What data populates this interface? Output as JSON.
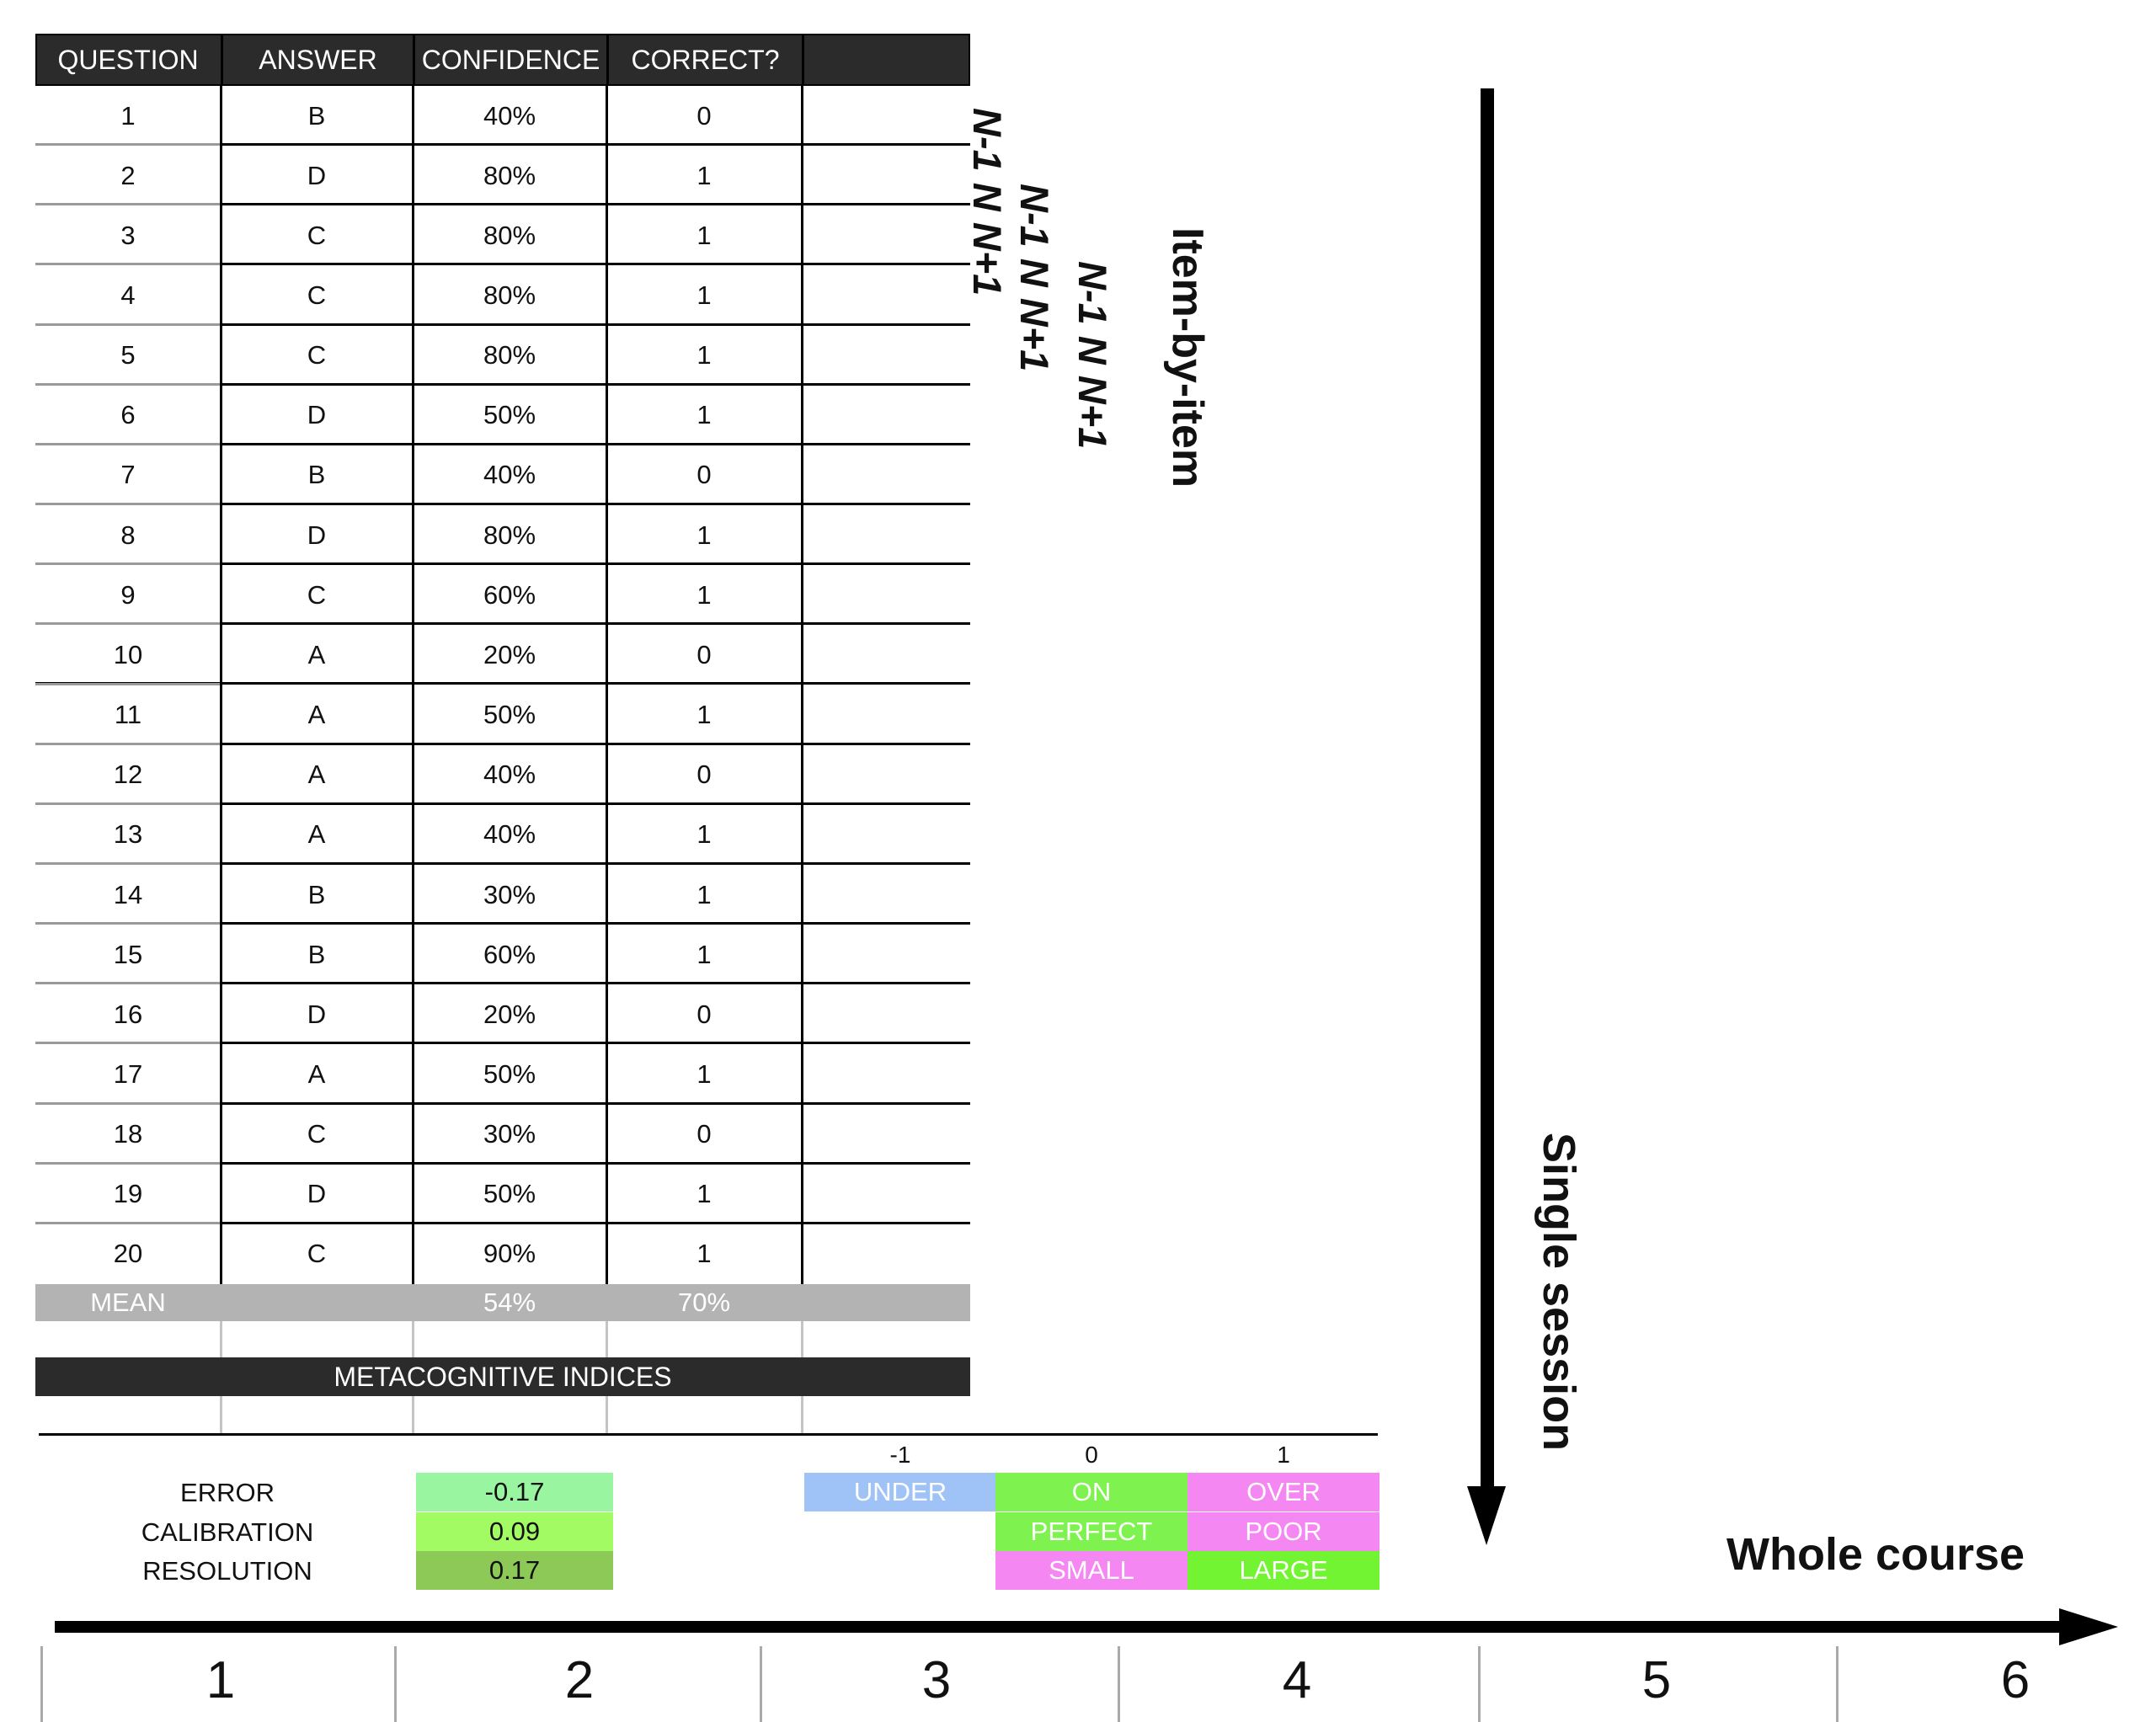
{
  "table": {
    "headers": [
      "QUESTION",
      "ANSWER",
      "CONFIDENCE",
      "CORRECT?",
      ""
    ],
    "rows": [
      [
        "1",
        "B",
        "40%",
        "0"
      ],
      [
        "2",
        "D",
        "80%",
        "1"
      ],
      [
        "3",
        "C",
        "80%",
        "1"
      ],
      [
        "4",
        "C",
        "80%",
        "1"
      ],
      [
        "5",
        "C",
        "80%",
        "1"
      ],
      [
        "6",
        "D",
        "50%",
        "1"
      ],
      [
        "7",
        "B",
        "40%",
        "0"
      ],
      [
        "8",
        "D",
        "80%",
        "1"
      ],
      [
        "9",
        "C",
        "60%",
        "1"
      ],
      [
        "10",
        "A",
        "20%",
        "0"
      ],
      [
        "11",
        "A",
        "50%",
        "1"
      ],
      [
        "12",
        "A",
        "40%",
        "0"
      ],
      [
        "13",
        "A",
        "40%",
        "1"
      ],
      [
        "14",
        "B",
        "30%",
        "1"
      ],
      [
        "15",
        "B",
        "60%",
        "1"
      ],
      [
        "16",
        "D",
        "20%",
        "0"
      ],
      [
        "17",
        "A",
        "50%",
        "1"
      ],
      [
        "18",
        "C",
        "30%",
        "0"
      ],
      [
        "19",
        "D",
        "50%",
        "1"
      ],
      [
        "20",
        "C",
        "90%",
        "1"
      ]
    ],
    "mean_row": {
      "label": "MEAN",
      "confidence": "54%",
      "correct": "70%"
    },
    "indices_title": "METACOGNITIVE INDICES"
  },
  "indices": [
    {
      "label": "ERROR",
      "value": "-0.17",
      "color": "#99f59f"
    },
    {
      "label": "CALIBRATION",
      "value": "0.09",
      "color": "#a2fb62"
    },
    {
      "label": "RESOLUTION",
      "value": "0.17",
      "color": "#8dc957"
    }
  ],
  "legend": {
    "ticks": [
      "-1",
      "0",
      "1"
    ],
    "rows": [
      [
        {
          "text": "UNDER",
          "color": "#9fc2f7"
        },
        {
          "text": "ON",
          "color": "#7ef24f"
        },
        {
          "text": "OVER",
          "color": "#f587f3"
        }
      ],
      [
        {
          "text": "",
          "color": ""
        },
        {
          "text": "PERFECT",
          "color": "#7ef24f"
        },
        {
          "text": "POOR",
          "color": "#f587f3"
        }
      ],
      [
        {
          "text": "",
          "color": ""
        },
        {
          "text": "SMALL",
          "color": "#f587f3"
        },
        {
          "text": "LARGE",
          "color": "#73f432"
        }
      ]
    ]
  },
  "annotations": {
    "window_labels": [
      "N-1 N N+1",
      "N-1 N N+1",
      "N-1 N N+1"
    ],
    "item_by_item": "Item-by-item",
    "single_session": "Single session",
    "whole_course": "Whole course"
  },
  "scale": [
    "1",
    "2",
    "3",
    "4",
    "5",
    "6"
  ],
  "colors": {
    "header_bg": "#2b2b2b",
    "mean_bg": "#b3b3b3",
    "axis": "#000000"
  }
}
